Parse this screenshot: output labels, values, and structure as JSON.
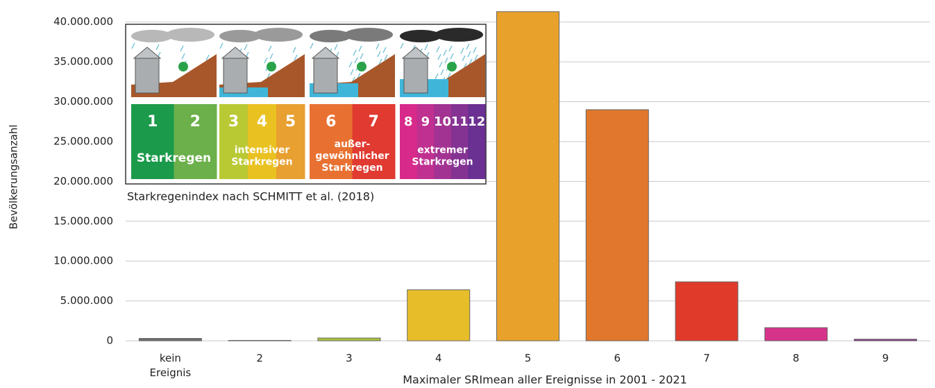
{
  "chart_data": {
    "type": "bar",
    "y_label": "Bevölkerungsanzahl",
    "x_label": "Maximaler SRImean aller Ereignisse in 2001 - 2021",
    "categories": [
      "kein Ereignis",
      "2",
      "3",
      "4",
      "5",
      "6",
      "7",
      "8",
      "9"
    ],
    "values": [
      300000,
      50000,
      350000,
      6400000,
      41300000,
      29000000,
      7400000,
      1650000,
      200000
    ],
    "colors": [
      "#6d6d6d",
      "#3a9c4a",
      "#a9c23f",
      "#e8bd2a",
      "#e8a22b",
      "#e0772c",
      "#e03a2b",
      "#d6338b",
      "#8c3a8c"
    ],
    "ylim": [
      0,
      42500000
    ],
    "yticks": [
      0,
      {
        "value": 5000000,
        "label": "5.000.000"
      },
      {
        "value": 10000000,
        "label": "10.000.000"
      },
      {
        "value": 15000000,
        "label": "15.000.000"
      },
      {
        "value": 20000000,
        "label": "20.000.000"
      },
      {
        "value": 25000000,
        "label": "25.000.000"
      },
      {
        "value": 30000000,
        "label": "30.000.000"
      },
      {
        "value": 35000000,
        "label": "35.000.000"
      },
      {
        "value": 40000000,
        "label": "40.000.000"
      }
    ],
    "grid": true,
    "legend_inset": {
      "caption": "Starkregenindex nach SCHMITT et al. (2018)",
      "groups": [
        {
          "levels": [
            1,
            2
          ],
          "colors": [
            "#1b9a4b",
            "#6cb04b"
          ],
          "lines": [
            "Starkregen"
          ]
        },
        {
          "levels": [
            3,
            4,
            5
          ],
          "colors": [
            "#b9c934",
            "#e9c121",
            "#e8a030"
          ],
          "lines": [
            "intensiver",
            "Starkregen"
          ]
        },
        {
          "levels": [
            6,
            7
          ],
          "colors": [
            "#e87131",
            "#e03a31"
          ],
          "lines": [
            "außer-",
            "gewöhnlicher",
            "Starkregen"
          ]
        },
        {
          "levels": [
            8,
            9,
            10,
            11,
            12
          ],
          "colors": [
            "#d82a8a",
            "#c03090",
            "#a33392",
            "#853393",
            "#6a3092"
          ],
          "lines": [
            "extremer",
            "Starkregen"
          ]
        }
      ]
    }
  }
}
